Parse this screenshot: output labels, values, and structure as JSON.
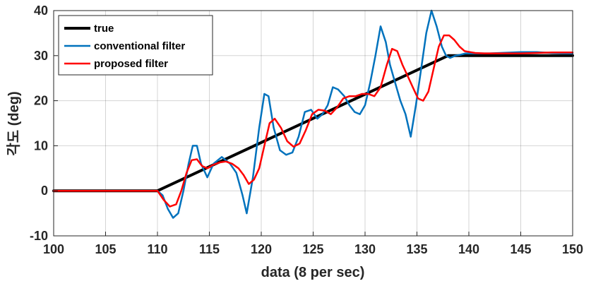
{
  "chart_data": {
    "type": "line",
    "xlabel": "data (8 per sec)",
    "ylabel": "각도 (deg)",
    "xlim": [
      100,
      150
    ],
    "ylim": [
      -10,
      40
    ],
    "xticks": [
      "100",
      "105",
      "110",
      "115",
      "120",
      "125",
      "130",
      "135",
      "140",
      "145",
      "150"
    ],
    "yticks": [
      "-10",
      "0",
      "10",
      "20",
      "30",
      "40"
    ],
    "grid": true,
    "legend_position": "top-left",
    "series": [
      {
        "name": "true",
        "color": "#000000",
        "width": 4,
        "x": [
          100,
          110,
          138,
          150
        ],
        "y": [
          0,
          0,
          30,
          30
        ]
      },
      {
        "name": "conventional filter",
        "color": "#0072BD",
        "width": 2.5,
        "x": [
          100,
          103,
          106,
          108,
          110,
          110.5,
          111,
          111.5,
          112,
          112.5,
          113,
          113.4,
          113.8,
          114.2,
          114.8,
          115.4,
          116.2,
          117,
          117.6,
          118.2,
          118.6,
          119.2,
          119.8,
          120.3,
          120.7,
          121.2,
          121.8,
          122.4,
          123,
          123.6,
          124.2,
          124.8,
          125.4,
          125.9,
          126.4,
          126.9,
          127.4,
          128,
          128.5,
          129,
          129.5,
          130,
          130.5,
          131,
          131.5,
          132,
          132.4,
          132.9,
          133.4,
          133.9,
          134.4,
          134.9,
          135.4,
          135.9,
          136.4,
          136.9,
          137.4,
          137.8,
          138.2,
          138.7,
          139.2,
          139.7,
          140.2,
          141,
          142,
          143,
          145,
          146.5,
          148,
          150
        ],
        "y": [
          0,
          0,
          0,
          0,
          0,
          -1,
          -4,
          -6,
          -5,
          0,
          6,
          10,
          10,
          6,
          3,
          6,
          7.5,
          6,
          4,
          -1,
          -5,
          3,
          14,
          21.5,
          21,
          14,
          9,
          8,
          8.5,
          12,
          17.5,
          18,
          16,
          17,
          19,
          23,
          22.5,
          21,
          19,
          17.5,
          17,
          19,
          24,
          30,
          36.5,
          33,
          28,
          24,
          20,
          17,
          12,
          19,
          27,
          35,
          40,
          36.5,
          32,
          30,
          29.5,
          30,
          30.2,
          30.5,
          30.5,
          30.5,
          30.5,
          30.6,
          30.8,
          30.8,
          30.6,
          30.5
        ]
      },
      {
        "name": "proposed filter",
        "color": "#FF0000",
        "width": 2.5,
        "x": [
          100,
          103,
          106,
          108,
          110,
          110.6,
          111.2,
          111.8,
          112.3,
          112.8,
          113.3,
          113.8,
          114.3,
          114.8,
          115.4,
          116,
          116.6,
          117.2,
          117.8,
          118.3,
          118.8,
          119.3,
          119.8,
          120.3,
          120.8,
          121.3,
          121.9,
          122.5,
          123.1,
          123.7,
          124.3,
          124.9,
          125.5,
          126.1,
          126.7,
          127.3,
          127.9,
          128.5,
          129.1,
          129.7,
          130.3,
          130.9,
          131.5,
          132.1,
          132.6,
          133.1,
          133.6,
          134.1,
          134.6,
          135.1,
          135.6,
          136.1,
          136.6,
          137.1,
          137.6,
          138.1,
          138.6,
          139.1,
          139.6,
          140.1,
          140.6,
          141.5,
          143,
          145,
          146.5,
          148,
          150
        ],
        "y": [
          0,
          0,
          0,
          0,
          0,
          -2,
          -3.5,
          -3,
          0,
          4,
          6.8,
          7,
          5.5,
          5,
          5.8,
          6.3,
          6.5,
          6,
          5,
          3.5,
          1.5,
          2.5,
          5,
          10,
          15,
          16,
          14,
          11,
          9.8,
          10.5,
          13.5,
          17,
          18,
          17.8,
          17,
          18.5,
          20.5,
          21,
          21,
          21.5,
          21.5,
          21,
          23,
          28,
          31.5,
          31,
          28,
          25.5,
          23,
          20.5,
          20,
          22,
          27,
          32,
          34.5,
          34.5,
          33.5,
          32,
          31,
          30.8,
          30.6,
          30.5,
          30.5,
          30.5,
          30.6,
          30.7,
          30.7
        ]
      }
    ]
  }
}
